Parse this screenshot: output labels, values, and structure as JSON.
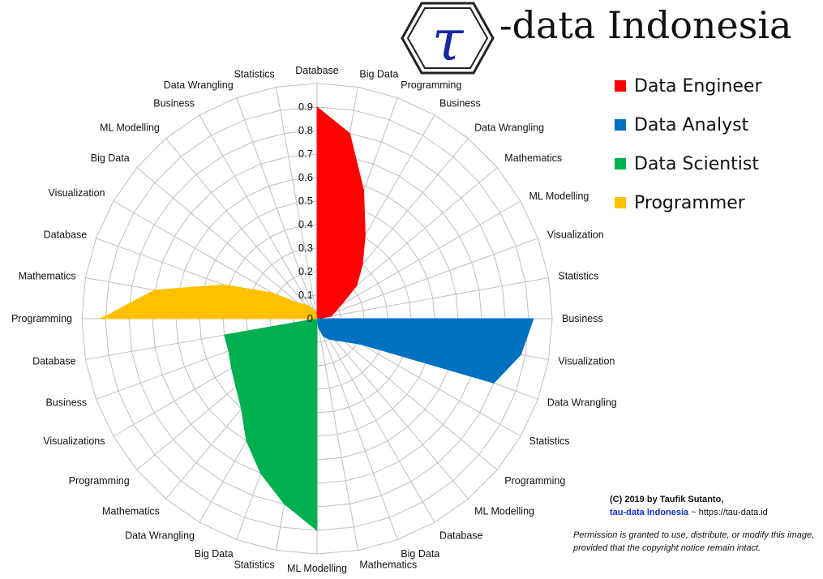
{
  "brand": {
    "logo_glyph": "τ",
    "title": "-data Indonesia"
  },
  "legend": [
    {
      "label": "Data Engineer",
      "color": "#ff0000"
    },
    {
      "label": "Data Analyst",
      "color": "#0070c0"
    },
    {
      "label": "Data Scientist",
      "color": "#00b050"
    },
    {
      "label": "Programmer",
      "color": "#ffc000"
    }
  ],
  "credit": {
    "line1": "(C) 2019 by Taufik Sutanto,",
    "org": "tau-data Indonesia",
    "separator": " ~ ",
    "url": "https://tau-data.id",
    "permission": "Permission is granted to use, distribute, or modify this image, provided that the copyright notice remain intact."
  },
  "chart_data": {
    "type": "radar",
    "title": "",
    "rlim": [
      0,
      1
    ],
    "ticks": [
      "0",
      "0.1",
      "0.2",
      "0.3",
      "0.4",
      "0.5",
      "0.6",
      "0.7",
      "0.8",
      "0.9"
    ],
    "grid": true,
    "categories": [
      "Database",
      "Big Data",
      "Programming",
      "Business",
      "Data Wrangling",
      "Mathematics",
      "ML Modelling",
      "Visualization",
      "Statistics",
      "Business",
      "Visualization",
      "Data Wrangling",
      "Statistics",
      "Programming",
      "ML Modelling",
      "Database",
      "Big Data",
      "Mathematics",
      "ML Modelling",
      "Statistics",
      "Big Data",
      "Data Wrangling",
      "Mathematics",
      "Programming",
      "Visualizations",
      "Business",
      "Database",
      "Programming",
      "Mathematics",
      "Database",
      "Visualization",
      "Big Data",
      "ML Modelling",
      "Business",
      "Data Wrangling",
      "Statistics"
    ],
    "series": [
      {
        "name": "Data Engineer",
        "color": "#ff0000",
        "values": [
          0.9,
          0.8,
          0.58,
          0.41,
          0.3,
          0.22,
          0.12,
          0.08,
          0.06,
          0,
          0,
          0,
          0,
          0,
          0,
          0,
          0,
          0,
          0,
          0,
          0,
          0,
          0,
          0,
          0,
          0,
          0,
          0,
          0,
          0,
          0,
          0,
          0,
          0,
          0,
          0
        ]
      },
      {
        "name": "Data Analyst",
        "color": "#0070c0",
        "values": [
          0,
          0,
          0,
          0,
          0,
          0,
          0,
          0,
          0,
          0.92,
          0.88,
          0.8,
          0.22,
          0.15,
          0.12,
          0.1,
          0.08,
          0.04,
          0,
          0,
          0,
          0,
          0,
          0,
          0,
          0,
          0,
          0,
          0,
          0,
          0,
          0,
          0,
          0,
          0,
          0
        ]
      },
      {
        "name": "Data Scientist",
        "color": "#00b050",
        "values": [
          0,
          0,
          0,
          0,
          0,
          0,
          0,
          0,
          0,
          0,
          0,
          0,
          0,
          0,
          0,
          0,
          0,
          0,
          0.9,
          0.8,
          0.7,
          0.6,
          0.5,
          0.45,
          0.42,
          0.4,
          0.4,
          0,
          0,
          0,
          0,
          0,
          0,
          0,
          0,
          0
        ]
      },
      {
        "name": "Programmer",
        "color": "#ffc000",
        "values": [
          0,
          0,
          0,
          0,
          0,
          0,
          0,
          0,
          0,
          0,
          0,
          0,
          0,
          0,
          0,
          0,
          0,
          0,
          0,
          0,
          0,
          0,
          0,
          0,
          0,
          0,
          0,
          0.92,
          0.7,
          0.42,
          0.22,
          0.1,
          0.08,
          0.06,
          0.04,
          0.03
        ]
      }
    ]
  }
}
